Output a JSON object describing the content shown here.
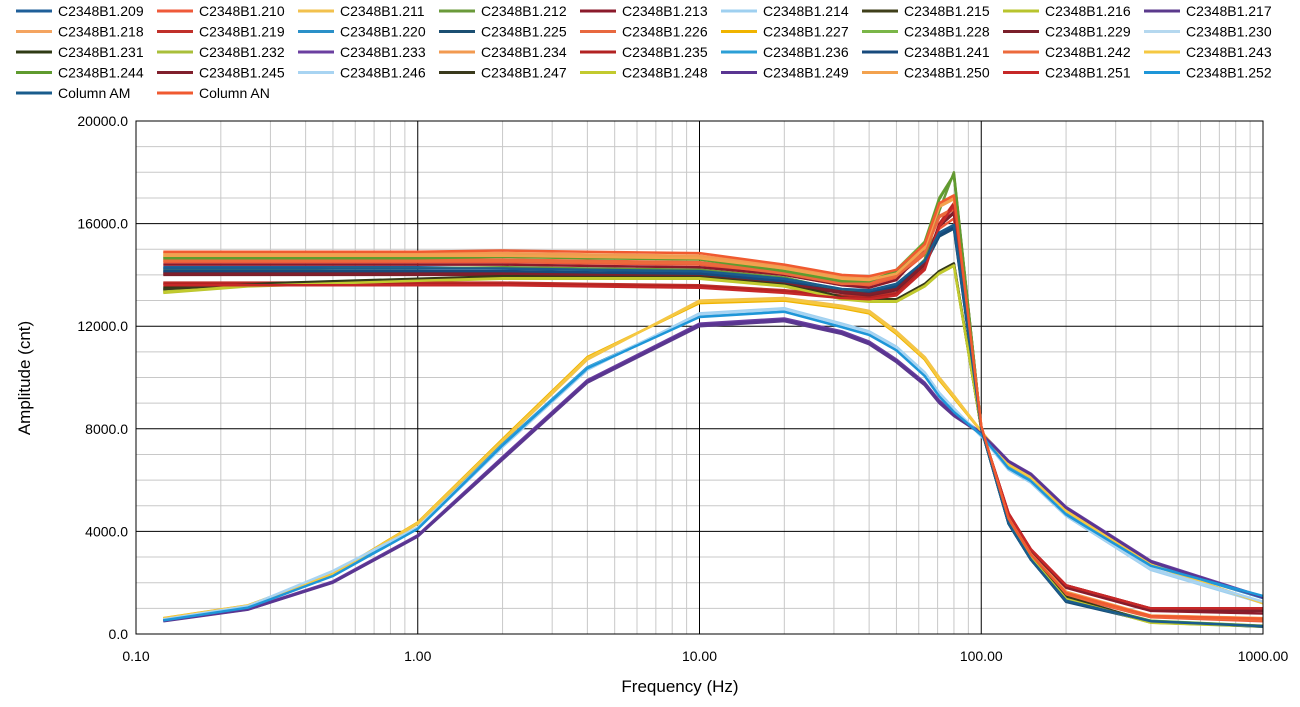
{
  "chart_data": {
    "type": "line",
    "title": "",
    "xlabel": "Frequency (Hz)",
    "ylabel": "Amplitude (cnt)",
    "x_scale": "log",
    "xlim": [
      0.1,
      1000
    ],
    "ylim": [
      0,
      20000
    ],
    "x_ticks": [
      0.1,
      1,
      10,
      100,
      1000
    ],
    "x_tick_labels": [
      "0.10",
      "1.00",
      "10.00",
      "100.00",
      "1000.00"
    ],
    "y_ticks": [
      0,
      4000,
      8000,
      12000,
      16000,
      20000
    ],
    "y_tick_labels": [
      "0.0",
      "4000.0",
      "8000.0",
      "12000.0",
      "16000.0",
      "20000.0"
    ],
    "grid": "major and minor",
    "legend_position": "top",
    "x": [
      0.125,
      0.25,
      0.5,
      1,
      2,
      4,
      10,
      20,
      32,
      40,
      50,
      63,
      71,
      80,
      100,
      125,
      150,
      200,
      400,
      1000
    ],
    "series": [
      {
        "name": "C2348B1.209",
        "color": "#1f5f99",
        "values": [
          14300,
          14300,
          14300,
          14300,
          14250,
          14200,
          14100,
          13800,
          13400,
          13350,
          13600,
          14500,
          15600,
          15900,
          8000,
          4300,
          2900,
          1300,
          500,
          300
        ]
      },
      {
        "name": "C2348B1.210",
        "color": "#ef5a3a",
        "values": [
          14500,
          14500,
          14500,
          14500,
          14500,
          14450,
          14400,
          14000,
          13600,
          13600,
          13900,
          14800,
          15800,
          16200,
          8000,
          4500,
          3000,
          1500,
          650,
          500
        ]
      },
      {
        "name": "C2348B1.211",
        "color": "#f2c14e",
        "values": [
          600,
          1100,
          2300,
          4300,
          7500,
          10700,
          13000,
          13100,
          12800,
          12600,
          11800,
          10800,
          10000,
          9300,
          7900,
          6600,
          6100,
          4800,
          2700,
          1200
        ]
      },
      {
        "name": "C2348B1.212",
        "color": "#6a9a3a",
        "values": [
          14200,
          14200,
          14250,
          14250,
          14300,
          14250,
          14200,
          13900,
          13400,
          13300,
          13500,
          14600,
          16500,
          18000,
          8000,
          4300,
          2900,
          1300,
          500,
          300
        ]
      },
      {
        "name": "C2348B1.213",
        "color": "#8b1a2b",
        "values": [
          14400,
          14400,
          14400,
          14400,
          14400,
          14350,
          14300,
          14000,
          13600,
          13500,
          13800,
          15000,
          17000,
          17900,
          8000,
          4600,
          3200,
          1800,
          900,
          800
        ]
      },
      {
        "name": "C2348B1.214",
        "color": "#9fd0f0",
        "values": [
          550,
          1100,
          2400,
          4100,
          7300,
          10300,
          12500,
          12700,
          12100,
          11800,
          11200,
          10200,
          9400,
          8800,
          7700,
          6400,
          5900,
          4600,
          2500,
          1200
        ]
      },
      {
        "name": "C2348B1.215",
        "color": "#3f3f1a",
        "values": [
          13400,
          13600,
          13700,
          13800,
          13900,
          13900,
          13900,
          13600,
          13100,
          13000,
          13000,
          13600,
          14100,
          14400,
          8000,
          4400,
          3000,
          1400,
          450,
          300
        ]
      },
      {
        "name": "C2348B1.216",
        "color": "#b8c42e",
        "values": [
          13300,
          13550,
          13650,
          13750,
          13850,
          13850,
          13850,
          13550,
          13050,
          12950,
          12950,
          13550,
          14050,
          14350,
          8000,
          4350,
          2950,
          1350,
          440,
          290
        ]
      },
      {
        "name": "C2348B1.217",
        "color": "#5b3a8c",
        "values": [
          500,
          950,
          2000,
          3800,
          6800,
          9800,
          12000,
          12200,
          11700,
          11300,
          10600,
          9700,
          9000,
          8500,
          7800,
          6700,
          6200,
          4900,
          2800,
          1400
        ]
      },
      {
        "name": "C2348B1.218",
        "color": "#f4a460",
        "values": [
          14800,
          14800,
          14800,
          14800,
          14800,
          14750,
          14700,
          14300,
          13900,
          13850,
          14100,
          15100,
          16700,
          17000,
          8100,
          4500,
          3100,
          1600,
          700,
          600
        ]
      },
      {
        "name": "C2348B1.219",
        "color": "#c0302a",
        "values": [
          13700,
          13700,
          13700,
          13700,
          13700,
          13650,
          13600,
          13400,
          13200,
          13150,
          13300,
          14300,
          16000,
          16800,
          8000,
          4700,
          3300,
          1900,
          1000,
          1000
        ]
      },
      {
        "name": "C2348B1.220",
        "color": "#2a90c8",
        "values": [
          550,
          1050,
          2300,
          4150,
          7400,
          10400,
          12400,
          12600,
          12000,
          11700,
          11100,
          10100,
          9300,
          8700,
          7800,
          6500,
          6000,
          4700,
          2700,
          1400
        ]
      },
      {
        "name": "C2348B1.225",
        "color": "#1b4f72",
        "values": [
          14100,
          14100,
          14100,
          14100,
          14100,
          14050,
          14000,
          13700,
          13300,
          13250,
          13500,
          14400,
          15500,
          15800,
          8000,
          4300,
          2900,
          1250,
          480,
          280
        ]
      },
      {
        "name": "C2348B1.226",
        "color": "#e8683f",
        "values": [
          14600,
          14600,
          14600,
          14600,
          14600,
          14550,
          14500,
          14100,
          13700,
          13700,
          14000,
          14900,
          16300,
          16600,
          8050,
          4550,
          3050,
          1550,
          680,
          550
        ]
      },
      {
        "name": "C2348B1.227",
        "color": "#f0b400",
        "values": [
          620,
          1120,
          2350,
          4350,
          7600,
          10800,
          12900,
          13000,
          12700,
          12500,
          11700,
          10700,
          9900,
          9200,
          7900,
          6600,
          6100,
          4800,
          2700,
          1200
        ]
      },
      {
        "name": "C2348B1.228",
        "color": "#7ab648",
        "values": [
          14700,
          14700,
          14700,
          14700,
          14750,
          14700,
          14650,
          14200,
          13800,
          13800,
          14200,
          15300,
          17000,
          17900,
          8000,
          4400,
          2950,
          1350,
          520,
          320
        ]
      },
      {
        "name": "C2348B1.229",
        "color": "#7a1f2a",
        "values": [
          14000,
          14000,
          14000,
          14000,
          14000,
          13950,
          13900,
          13600,
          13300,
          13200,
          13400,
          14400,
          15900,
          16400,
          8000,
          4650,
          3200,
          1850,
          950,
          900
        ]
      },
      {
        "name": "C2348B1.230",
        "color": "#b5d8ef",
        "values": [
          560,
          1080,
          2450,
          4150,
          7350,
          10350,
          12450,
          12650,
          12050,
          11750,
          11150,
          10150,
          9350,
          8750,
          7750,
          6450,
          5950,
          4650,
          2550,
          1250
        ]
      },
      {
        "name": "C2348B1.231",
        "color": "#2f3a14",
        "values": [
          13500,
          13650,
          13750,
          13850,
          13950,
          13950,
          13950,
          13650,
          13150,
          13050,
          13050,
          13650,
          14150,
          14450,
          8000,
          4450,
          3050,
          1450,
          470,
          310
        ]
      },
      {
        "name": "C2348B1.232",
        "color": "#a9bf3a",
        "values": [
          13350,
          13600,
          13700,
          13800,
          13900,
          13900,
          13900,
          13600,
          13100,
          13000,
          13000,
          13600,
          14100,
          14400,
          8000,
          4400,
          3000,
          1400,
          450,
          300
        ]
      },
      {
        "name": "C2348B1.233",
        "color": "#6b3fa0",
        "values": [
          520,
          980,
          2050,
          3850,
          6900,
          9900,
          12100,
          12300,
          11800,
          11400,
          10700,
          9800,
          9100,
          8600,
          7850,
          6750,
          6250,
          4950,
          2850,
          1450
        ]
      },
      {
        "name": "C2348B1.234",
        "color": "#f29a50",
        "values": [
          14850,
          14850,
          14850,
          14850,
          14850,
          14800,
          14750,
          14350,
          13950,
          13900,
          14150,
          15150,
          16750,
          17050,
          8100,
          4550,
          3150,
          1650,
          720,
          620
        ]
      },
      {
        "name": "C2348B1.235",
        "color": "#b22222",
        "values": [
          13650,
          13650,
          13650,
          13650,
          13650,
          13600,
          13550,
          13350,
          13150,
          13100,
          13250,
          14250,
          15950,
          16750,
          8000,
          4700,
          3300,
          1900,
          1000,
          1000
        ]
      },
      {
        "name": "C2348B1.236",
        "color": "#2b9fd6",
        "values": [
          540,
          1040,
          2280,
          4120,
          7380,
          10380,
          12380,
          12580,
          11980,
          11680,
          11080,
          10080,
          9280,
          8680,
          7780,
          6480,
          5980,
          4680,
          2680,
          1450
        ]
      },
      {
        "name": "C2348B1.241",
        "color": "#174a7c",
        "values": [
          14150,
          14150,
          14150,
          14150,
          14150,
          14100,
          14050,
          13750,
          13350,
          13300,
          13550,
          14450,
          15550,
          15850,
          8000,
          4300,
          2900,
          1280,
          490,
          290
        ]
      },
      {
        "name": "C2348B1.242",
        "color": "#ec6a3c",
        "values": [
          14550,
          14550,
          14550,
          14550,
          14550,
          14500,
          14450,
          14050,
          13650,
          13650,
          13950,
          14850,
          16250,
          16550,
          8050,
          4550,
          3050,
          1550,
          670,
          540
        ]
      },
      {
        "name": "C2348B1.243",
        "color": "#f5c842",
        "values": [
          610,
          1110,
          2330,
          4330,
          7550,
          10750,
          12950,
          13050,
          12750,
          12550,
          11750,
          10750,
          9950,
          9250,
          7900,
          6600,
          6100,
          4800,
          2700,
          1200
        ]
      },
      {
        "name": "C2348B1.244",
        "color": "#5f9b2f",
        "values": [
          14650,
          14650,
          14650,
          14650,
          14700,
          14650,
          14600,
          14150,
          13750,
          13750,
          14150,
          15250,
          16950,
          17900,
          8000,
          4400,
          2950,
          1350,
          510,
          310
        ]
      },
      {
        "name": "C2348B1.245",
        "color": "#801f2c",
        "values": [
          14050,
          14050,
          14050,
          14050,
          14050,
          14000,
          13950,
          13650,
          13350,
          13250,
          13450,
          14450,
          15950,
          16450,
          8000,
          4650,
          3200,
          1850,
          950,
          900
        ]
      },
      {
        "name": "C2348B1.246",
        "color": "#a8d4f2",
        "values": [
          570,
          1090,
          2460,
          4160,
          7360,
          10360,
          12460,
          12660,
          12060,
          11760,
          11160,
          10160,
          9360,
          8760,
          7760,
          6460,
          5960,
          4660,
          2560,
          1260
        ]
      },
      {
        "name": "C2348B1.247",
        "color": "#3a3a1c",
        "values": [
          13450,
          13620,
          13720,
          13820,
          13920,
          13920,
          13920,
          13620,
          13120,
          13020,
          13020,
          13620,
          14120,
          14420,
          8000,
          4420,
          3020,
          1420,
          460,
          305
        ]
      },
      {
        "name": "C2348B1.248",
        "color": "#c2ca2e",
        "values": [
          13320,
          13570,
          13670,
          13770,
          13870,
          13870,
          13870,
          13570,
          13070,
          12970,
          12970,
          13570,
          14070,
          14370,
          8000,
          4370,
          2970,
          1370,
          445,
          295
        ]
      },
      {
        "name": "C2348B1.249",
        "color": "#5a3592",
        "values": [
          510,
          960,
          2020,
          3820,
          6850,
          9850,
          12050,
          12250,
          11750,
          11350,
          10650,
          9750,
          9050,
          8550,
          7820,
          6720,
          6220,
          4920,
          2820,
          1420
        ]
      },
      {
        "name": "C2348B1.250",
        "color": "#f3a24e",
        "values": [
          14750,
          14750,
          14750,
          14750,
          14750,
          14700,
          14650,
          14250,
          13850,
          13800,
          14050,
          15050,
          16650,
          16950,
          8100,
          4520,
          3120,
          1620,
          710,
          610
        ]
      },
      {
        "name": "C2348B1.251",
        "color": "#c62828",
        "values": [
          13600,
          13600,
          13600,
          13600,
          13600,
          13550,
          13500,
          13300,
          13100,
          13050,
          13200,
          14200,
          15900,
          16700,
          8000,
          4700,
          3300,
          1900,
          1000,
          1000
        ]
      },
      {
        "name": "C2348B1.252",
        "color": "#1e96d8",
        "values": [
          530,
          1030,
          2260,
          4100,
          7360,
          10360,
          12360,
          12560,
          11960,
          11660,
          11060,
          10060,
          9260,
          8660,
          7760,
          6460,
          5960,
          4660,
          2660,
          1480
        ]
      },
      {
        "name": "Column AM",
        "color": "#1a5c8c",
        "values": [
          14250,
          14250,
          14250,
          14250,
          14250,
          14200,
          14150,
          13850,
          13450,
          13400,
          13650,
          14550,
          15650,
          15950,
          8000,
          4300,
          2900,
          1300,
          500,
          300
        ]
      },
      {
        "name": "Column AN",
        "color": "#f05a30",
        "values": [
          14900,
          14900,
          14900,
          14900,
          14950,
          14900,
          14850,
          14400,
          14000,
          13950,
          14200,
          15200,
          16800,
          17100,
          8100,
          4500,
          3100,
          1600,
          700,
          600
        ]
      }
    ]
  }
}
